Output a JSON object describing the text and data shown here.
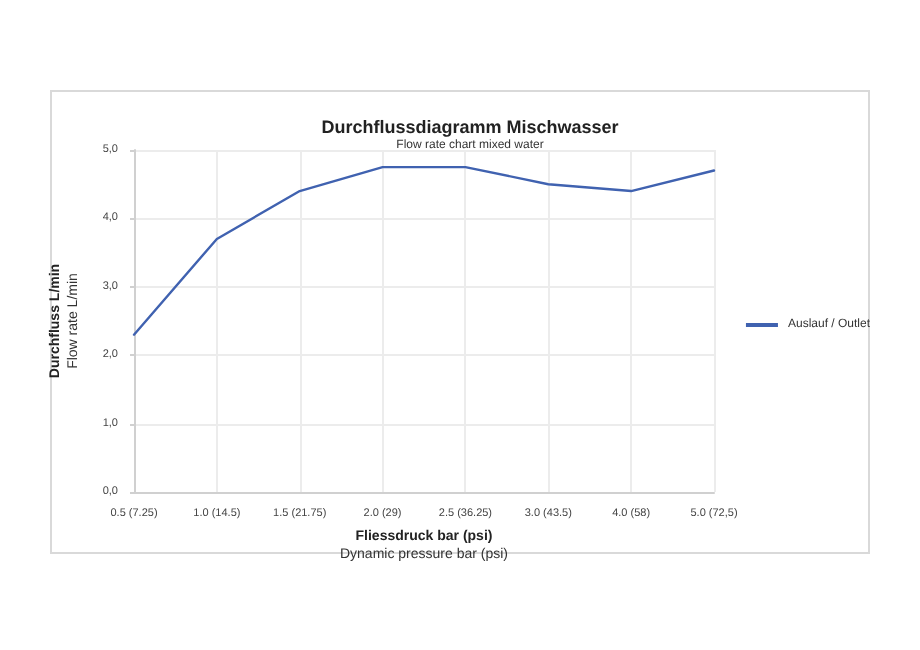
{
  "chart_data": {
    "type": "line",
    "title": "Durchflussdiagramm Mischwasser",
    "subtitle": "Flow rate chart mixed water",
    "xlabel": "Fliessdruck bar (psi)\nDynamic pressure bar (psi)",
    "ylabel": "Durchfluss L/min\nFlow rate L/min",
    "categories": [
      "0.5 (7.25)",
      "1.0 (14.5)",
      "1.5 (21.75)",
      "2.0 (29)",
      "2.5 (36.25)",
      "3.0 (43.5)",
      "4.0 (58)",
      "5.0 (72,5)"
    ],
    "series": [
      {
        "name": "Auslauf / Outlet",
        "color": "#4062b0",
        "values": [
          2.3,
          3.7,
          4.4,
          4.75,
          4.75,
          4.5,
          4.4,
          4.7
        ]
      }
    ],
    "ylim": [
      0,
      5
    ],
    "yticks": [
      {
        "value": 0,
        "label": "0,0"
      },
      {
        "value": 1,
        "label": "1,0"
      },
      {
        "value": 2,
        "label": "2,0"
      },
      {
        "value": 3,
        "label": "3,0"
      },
      {
        "value": 4,
        "label": "4,0"
      },
      {
        "value": 5,
        "label": "5,0"
      }
    ],
    "grid": true,
    "legend": "right",
    "marker": "none",
    "line_style": "solid"
  }
}
